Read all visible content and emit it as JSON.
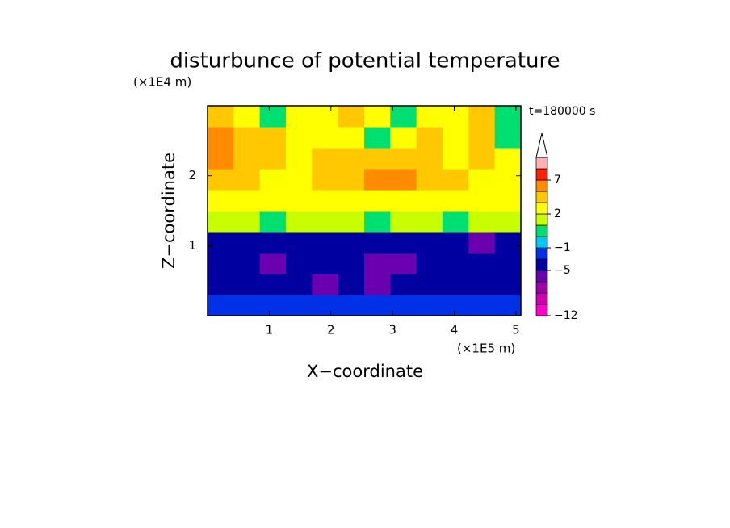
{
  "chart_data": {
    "type": "contour",
    "title": "disturbunce of potential temperature",
    "xlabel": "X−coordinate",
    "ylabel": "Z−coordinate",
    "xunit": "(×1E5 m)",
    "yunit": "(×1E4 m)",
    "annotation": "t=180000 s",
    "xlim": [
      0,
      5.08
    ],
    "ylim": [
      0,
      3
    ],
    "xticks": [
      1,
      2,
      3,
      4,
      5
    ],
    "yticks": [
      1,
      2
    ],
    "levels": [
      -12,
      -10,
      -8,
      -6,
      -5,
      -3,
      -1,
      0,
      1,
      2,
      3,
      5,
      7,
      9,
      11
    ],
    "colors": [
      "#ff00cc",
      "#d000b0",
      "#a000a8",
      "#6a00b0",
      "#0000a0",
      "#0030e8",
      "#00c8ff",
      "#00e070",
      "#c8ff00",
      "#ffff00",
      "#ffc800",
      "#ff8c00",
      "#ff2000",
      "#ffb0b0"
    ],
    "overflow_color": "#ffffff",
    "cbticks": [
      {
        "value": -12,
        "label": "−12"
      },
      {
        "value": -5,
        "label": "−5"
      },
      {
        "value": -1,
        "label": "−1"
      },
      2,
      7
    ],
    "z": [
      [
        -2,
        -2,
        -2,
        -2,
        -2,
        -2,
        -2,
        -2,
        -2,
        -2,
        -2,
        -2
      ],
      [
        -4,
        -4,
        -4,
        -4,
        -5.5,
        -4,
        -5.5,
        -4,
        -4,
        -4,
        -4,
        -4
      ],
      [
        -4,
        -4,
        -5.5,
        -4,
        -4,
        -4,
        -5.5,
        -5.5,
        -4,
        -4,
        -4,
        -4
      ],
      [
        -4,
        -4,
        -4,
        -4,
        -4,
        -4,
        -4,
        -4,
        -4,
        -4,
        -5.5,
        -4
      ],
      [
        1.5,
        1.5,
        0.5,
        1.5,
        1.5,
        1.5,
        0.5,
        1.5,
        1.5,
        0.5,
        1.5,
        1.5
      ],
      [
        2.5,
        2.5,
        2.5,
        2.5,
        2.5,
        2.5,
        2.5,
        2.5,
        2.5,
        2.5,
        2.5,
        2.5
      ],
      [
        3.5,
        3.5,
        2.5,
        2.5,
        3.5,
        4,
        5.5,
        5.5,
        4,
        3.5,
        2.5,
        2.5
      ],
      [
        5.5,
        3.5,
        3.5,
        2.5,
        3.5,
        3.5,
        3.5,
        3.5,
        3.5,
        2.5,
        3.5,
        2.5
      ],
      [
        5.5,
        4,
        3.5,
        2.5,
        2.5,
        2.5,
        0.5,
        2.5,
        3.5,
        2.5,
        3.5,
        0.5
      ],
      [
        3.5,
        2.5,
        0.5,
        2.5,
        2.5,
        3.5,
        2.5,
        0.5,
        2.5,
        2.5,
        3.5,
        0.5
      ]
    ]
  }
}
